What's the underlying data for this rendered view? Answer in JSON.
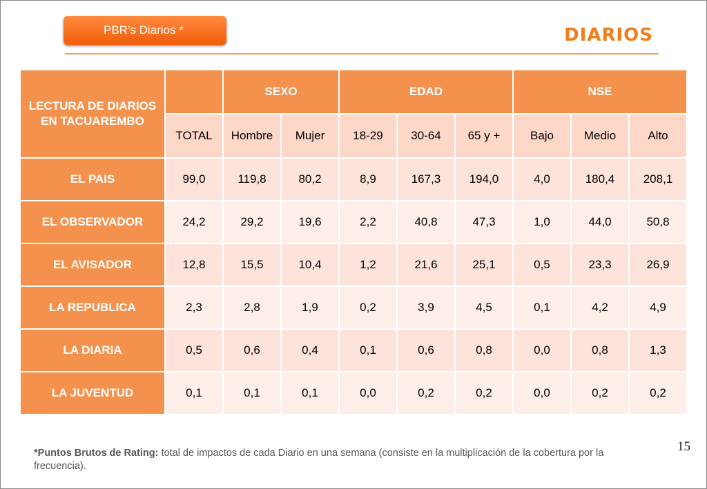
{
  "badge": {
    "label": "PBR’s Diarios  *"
  },
  "heading": "DIARIOS",
  "table": {
    "corner_label": "LECTURA DE DIARIOS EN TACUAREMBO",
    "groups": [
      "SEXO",
      "EDAD",
      "NSE"
    ],
    "columns": [
      "TOTAL",
      "Hombre",
      "Mujer",
      "18-29",
      "30-64",
      "65 y +",
      "Bajo",
      "Medio",
      "Alto"
    ],
    "rows": [
      {
        "label": "EL PAIS",
        "values": [
          "99,0",
          "119,8",
          "80,2",
          "8,9",
          "167,3",
          "194,0",
          "4,0",
          "180,4",
          "208,1"
        ]
      },
      {
        "label": "EL OBSERVADOR",
        "values": [
          "24,2",
          "29,2",
          "19,6",
          "2,2",
          "40,8",
          "47,3",
          "1,0",
          "44,0",
          "50,8"
        ]
      },
      {
        "label": "EL AVISADOR",
        "values": [
          "12,8",
          "15,5",
          "10,4",
          "1,2",
          "21,6",
          "25,1",
          "0,5",
          "23,3",
          "26,9"
        ]
      },
      {
        "label": "LA REPUBLICA",
        "values": [
          "2,3",
          "2,8",
          "1,9",
          "0,2",
          "3,9",
          "4,5",
          "0,1",
          "4,2",
          "4,9"
        ]
      },
      {
        "label": "LA DIARIA",
        "values": [
          "0,5",
          "0,6",
          "0,4",
          "0,1",
          "0,6",
          "0,8",
          "0,0",
          "0,8",
          "1,3"
        ]
      },
      {
        "label": "LA JUVENTUD",
        "values": [
          "0,1",
          "0,1",
          "0,1",
          "0,0",
          "0,2",
          "0,2",
          "0,0",
          "0,2",
          "0,2"
        ]
      }
    ]
  },
  "page_number": "15",
  "footnote": {
    "term": "*Puntos Brutos de Rating:",
    "text": " total de impactos de cada Diario en una semana (consiste en la multiplicación de la cobertura por la frecuencia)."
  },
  "colors": {
    "header_orange": "#f4924d",
    "badge_orange": "#f05d0a",
    "heading_orange": "#f07d19",
    "subheader_pink": "#fdd8c8",
    "cell_light": "#fde3da",
    "cell_lighter": "#feeee8"
  }
}
